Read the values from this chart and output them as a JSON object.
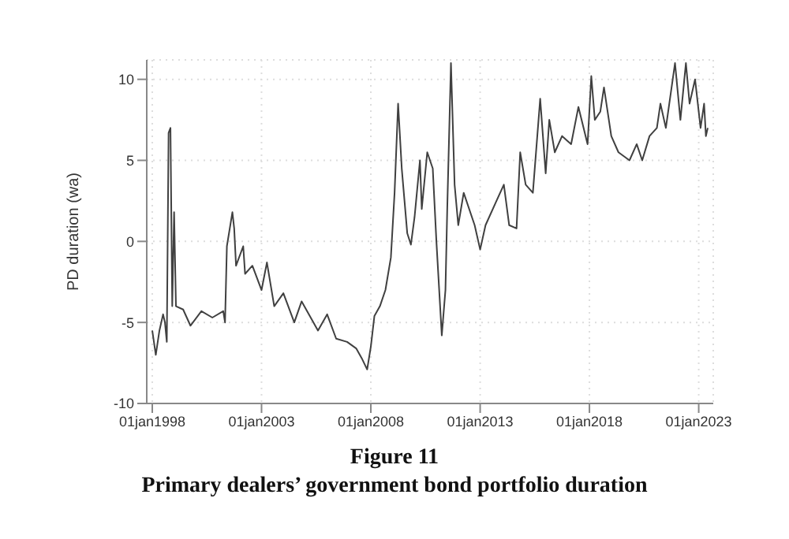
{
  "chart_data": {
    "type": "line",
    "title": "Figure 11",
    "subtitle": "Primary dealers’ government bond portfolio duration",
    "ylabel": "PD duration (wa)",
    "x": [
      "1998-01",
      "1998-03",
      "1998-05",
      "1998-07",
      "1998-08",
      "1998-09",
      "1998-10",
      "1998-11",
      "1998-12",
      "1999-01",
      "1999-02",
      "1999-06",
      "1999-10",
      "2000-04",
      "2000-10",
      "2001-04",
      "2001-05",
      "2001-06",
      "2001-09",
      "2001-10",
      "2001-11",
      "2002-03",
      "2002-04",
      "2002-08",
      "2003-01",
      "2003-04",
      "2003-08",
      "2004-01",
      "2004-07",
      "2004-11",
      "2005-08",
      "2006-01",
      "2006-06",
      "2006-12",
      "2007-05",
      "2007-08",
      "2007-11",
      "2008-01",
      "2008-03",
      "2008-06",
      "2008-09",
      "2008-12",
      "2009-02",
      "2009-04",
      "2009-06",
      "2009-09",
      "2009-11",
      "2010-01",
      "2010-04",
      "2010-05",
      "2010-08",
      "2010-11",
      "2011-01",
      "2011-04",
      "2011-06",
      "2011-07",
      "2011-09",
      "2011-11",
      "2012-01",
      "2012-04",
      "2012-10",
      "2013-01",
      "2013-04",
      "2013-10",
      "2014-02",
      "2014-05",
      "2014-09",
      "2014-11",
      "2015-02",
      "2015-06",
      "2015-10",
      "2016-01",
      "2016-03",
      "2016-06",
      "2016-10",
      "2017-03",
      "2017-07",
      "2017-12",
      "2018-02",
      "2018-04",
      "2018-07",
      "2018-09",
      "2019-01",
      "2019-05",
      "2019-11",
      "2020-03",
      "2020-06",
      "2020-10",
      "2021-02",
      "2021-04",
      "2021-07",
      "2021-12",
      "2022-03",
      "2022-06",
      "2022-08",
      "2022-11",
      "2023-02",
      "2023-04",
      "2023-05",
      "2023-06"
    ],
    "series": [
      {
        "color": "#404040",
        "values": [
          -5.5,
          -7.0,
          -5.5,
          -4.5,
          -5.0,
          -6.2,
          6.7,
          7.0,
          -4.0,
          1.8,
          -4.0,
          -4.2,
          -5.2,
          -4.3,
          -4.7,
          -4.3,
          -5.0,
          -0.3,
          1.8,
          0.8,
          -1.5,
          -0.3,
          -2.0,
          -1.5,
          -3.0,
          -1.3,
          -4.0,
          -3.2,
          -5.0,
          -3.7,
          -5.5,
          -4.5,
          -6.0,
          -6.2,
          -6.6,
          -7.2,
          -7.9,
          -6.5,
          -4.6,
          -4.0,
          -3.0,
          -1.0,
          3.0,
          8.5,
          4.5,
          0.5,
          -0.2,
          1.5,
          5.0,
          2.0,
          5.5,
          4.5,
          0.0,
          -5.8,
          -3.0,
          2.0,
          11.0,
          3.5,
          1.0,
          3.0,
          1.0,
          -0.5,
          1.0,
          2.5,
          3.5,
          1.0,
          0.8,
          5.5,
          3.5,
          3.0,
          8.8,
          4.2,
          7.5,
          5.5,
          6.5,
          6.0,
          8.3,
          6.0,
          10.2,
          7.5,
          8.0,
          9.5,
          6.5,
          5.5,
          5.0,
          6.0,
          5.0,
          6.5,
          7.0,
          8.5,
          7.0,
          11.0,
          7.5,
          11.0,
          8.5,
          10.0,
          7.0,
          8.5,
          6.5,
          7.0
        ]
      }
    ],
    "xlim": [
      "1997-10",
      "2023-09"
    ],
    "xticks": [
      {
        "value": "1998-01-01",
        "label": "01jan1998"
      },
      {
        "value": "2003-01-01",
        "label": "01jan2003"
      },
      {
        "value": "2008-01-01",
        "label": "01jan2008"
      },
      {
        "value": "2013-01-01",
        "label": "01jan2013"
      },
      {
        "value": "2018-01-01",
        "label": "01jan2018"
      },
      {
        "value": "2023-01-01",
        "label": "01jan2023"
      }
    ],
    "ylim": [
      -10,
      11.2
    ],
    "yticks": [
      -10,
      -5,
      0,
      5,
      10
    ],
    "grid": true
  }
}
